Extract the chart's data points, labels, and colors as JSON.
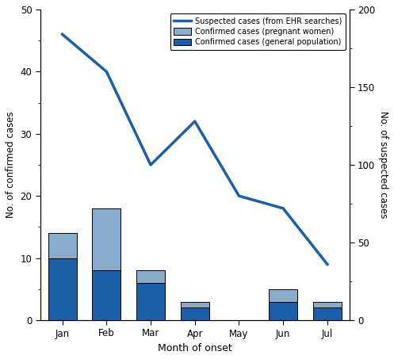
{
  "months": [
    "Jan",
    "Feb",
    "Mar",
    "Apr",
    "May",
    "Jun",
    "Jul"
  ],
  "confirmed_general": [
    10,
    8,
    6,
    2,
    0,
    3,
    2
  ],
  "confirmed_pregnant": [
    4,
    10,
    2,
    1,
    0,
    2,
    1
  ],
  "suspected": [
    184,
    160,
    100,
    128,
    80,
    72,
    36
  ],
  "color_dark": "#1a5fa8",
  "color_light": "#8aabcc",
  "color_line": "#1a5fa8",
  "ylabel_left": "No. of confirmed cases",
  "ylabel_right": "No. of suspected cases",
  "xlabel": "Month of onset",
  "ylim_left": [
    0,
    50
  ],
  "ylim_right": [
    0,
    200
  ],
  "legend_line": "Suspected cases (from EHR searches)",
  "legend_light": "Confirmed cases (pregnant women)",
  "legend_dark": "Confirmed cases (general population)",
  "bar_width": 0.65,
  "background_color": "#ffffff"
}
